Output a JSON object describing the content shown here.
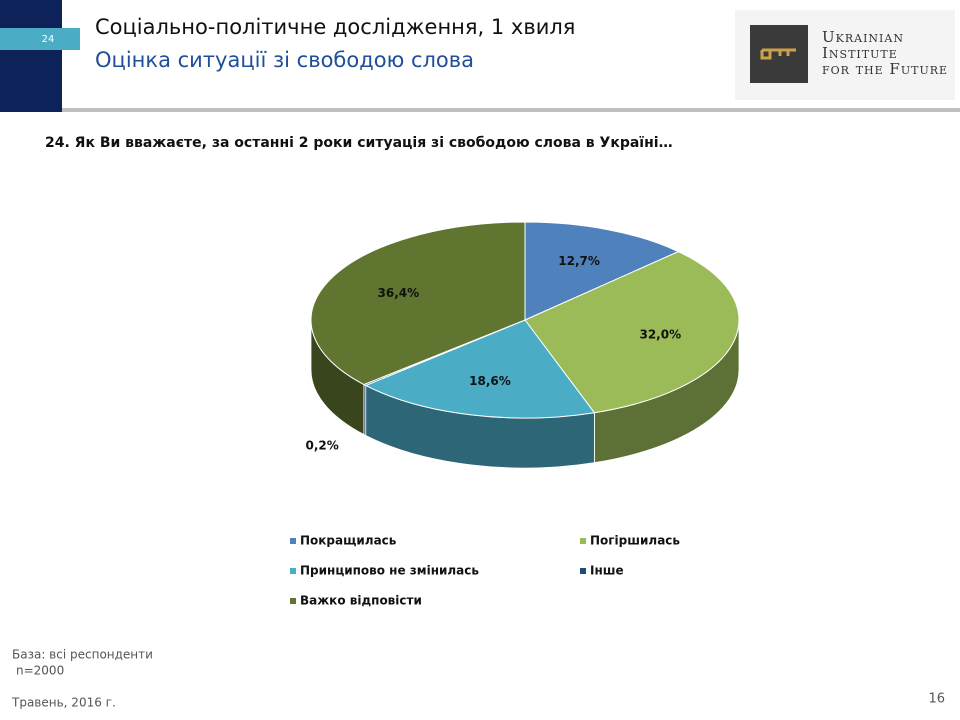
{
  "header": {
    "slide_number": "24",
    "title": "Соціально-політичне дослідження, 1 хвиля",
    "subtitle": "Оцінка ситуації зі свободою слова"
  },
  "logo": {
    "lines": [
      "Ukrainian",
      "Institute",
      "for the Future"
    ]
  },
  "chart_data": {
    "type": "pie",
    "title": "24. Як Ви вважаєте, за останні 2 роки ситуація зі свободою слова в Україні…",
    "categories": [
      "Покращилась",
      "Погіршилась",
      "Принципово не змінилась",
      "Інше",
      "Важко відповісти"
    ],
    "values": [
      12.7,
      32.0,
      18.6,
      0.2,
      36.4
    ],
    "value_labels": [
      "12,7%",
      "32,0%",
      "18,6%",
      "0,2%",
      "36,4%"
    ],
    "colors": [
      "#4f81bd",
      "#9bbb59",
      "#4bacc6",
      "#1f497d",
      "#5f7530"
    ]
  },
  "footer": {
    "base": "База: всі респонденти",
    "n": "n=2000",
    "date": "Травень, 2016 г.",
    "page": "16"
  }
}
